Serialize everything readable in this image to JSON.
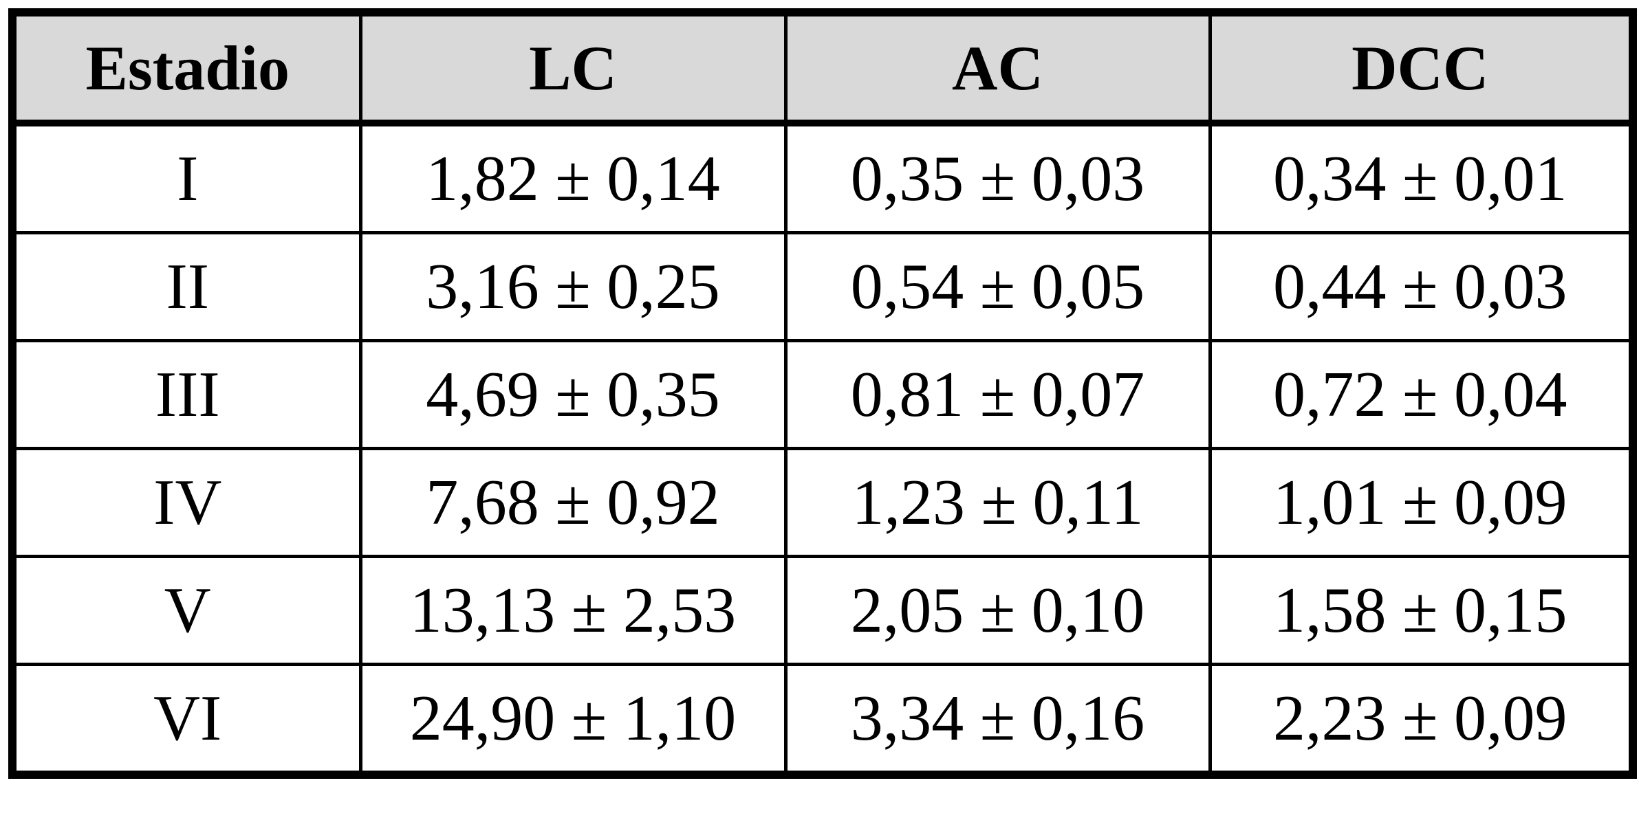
{
  "table": {
    "header": [
      "Estadio",
      "LC",
      "AC",
      "DCC"
    ],
    "rows": [
      [
        "I",
        "1,82 ± 0,14",
        "0,35 ± 0,03",
        "0,34 ± 0,01"
      ],
      [
        "II",
        "3,16 ± 0,25",
        "0,54 ± 0,05",
        "0,44 ± 0,03"
      ],
      [
        "III",
        "4,69 ± 0,35",
        "0,81 ± 0,07",
        "0,72 ± 0,04"
      ],
      [
        "IV",
        "7,68 ± 0,92",
        "1,23 ± 0,11",
        "1,01 ± 0,09"
      ],
      [
        "V",
        "13,13 ± 2,53",
        "2,05 ± 0,10",
        "1,58 ± 0,15"
      ],
      [
        "VI",
        "24,90 ± 1,10",
        "3,34 ± 0,16",
        "2,23 ± 0,09"
      ]
    ]
  }
}
